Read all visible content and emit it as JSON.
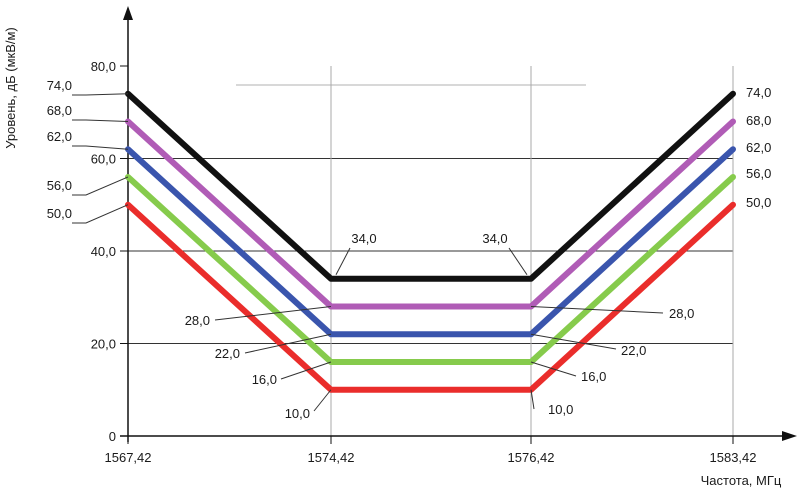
{
  "chart_data": {
    "type": "line",
    "title": "",
    "xlabel": "Частота, МГц",
    "ylabel": "Уровень, дБ (мкВ/м)",
    "x_ticks": [
      "1567,42",
      "1574,42",
      "1576,42",
      "1583,42"
    ],
    "y_ticks": [
      "0",
      "20,0",
      "40,0",
      "60,0",
      "80,0"
    ],
    "ylim": [
      0,
      80
    ],
    "grid": "horizontal and vertical at tick marks",
    "colors": {
      "black": "#111111",
      "magenta": "#b05cb6",
      "blue": "#3a55ad",
      "green": "#86cb4c",
      "red": "#ea2d2b",
      "grid": "#333333"
    },
    "series": [
      {
        "color": "#111111",
        "x": [
          "1567,42",
          "1574,42",
          "1576,42",
          "1583,42"
        ],
        "values": [
          74.0,
          34.0,
          34.0,
          74.0
        ]
      },
      {
        "color": "#b05cb6",
        "x": [
          "1567,42",
          "1574,42",
          "1576,42",
          "1583,42"
        ],
        "values": [
          68.0,
          28.0,
          28.0,
          68.0
        ]
      },
      {
        "color": "#3a55ad",
        "x": [
          "1567,42",
          "1574,42",
          "1576,42",
          "1583,42"
        ],
        "values": [
          62.0,
          22.0,
          22.0,
          62.0
        ]
      },
      {
        "color": "#86cb4c",
        "x": [
          "1567,42",
          "1574,42",
          "1576,42",
          "1583,42"
        ],
        "values": [
          56.0,
          16.0,
          16.0,
          56.0
        ]
      },
      {
        "color": "#ea2d2b",
        "x": [
          "1567,42",
          "1574,42",
          "1576,42",
          "1583,42"
        ],
        "values": [
          50.0,
          10.0,
          10.0,
          50.0
        ]
      }
    ],
    "left_labels": [
      "74,0",
      "68,0",
      "62,0",
      "56,0",
      "50,0"
    ],
    "right_labels": [
      "74,0",
      "68,0",
      "62,0",
      "56,0",
      "50,0"
    ],
    "inner_labels": {
      "top_left": "34,0",
      "top_right": "34,0",
      "left": [
        "28,0",
        "22,0",
        "16,0",
        "10,0"
      ],
      "right": [
        "28,0",
        "22,0",
        "16,0",
        "10,0"
      ]
    }
  }
}
